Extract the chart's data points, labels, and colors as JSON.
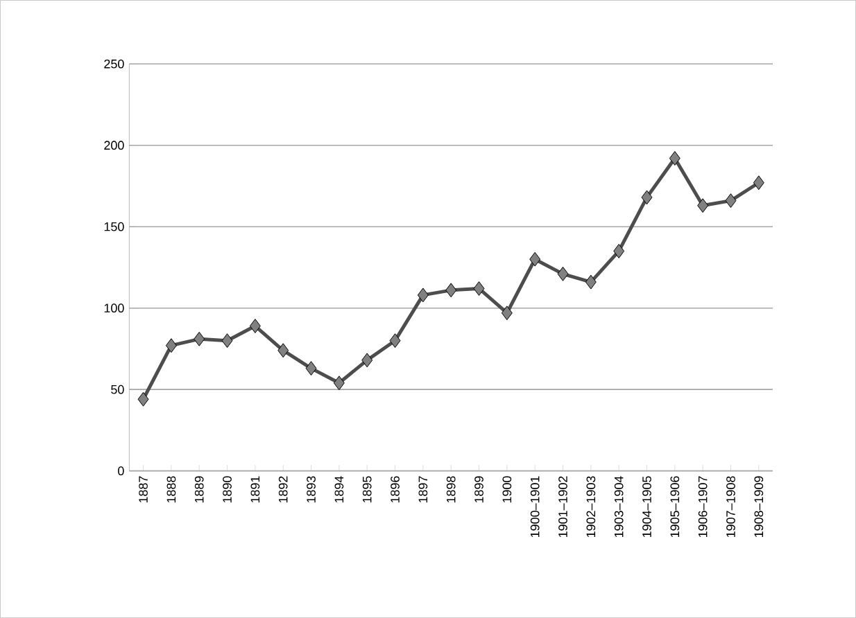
{
  "chart_data": {
    "type": "line",
    "categories": [
      "1887",
      "1888",
      "1889",
      "1890",
      "1891",
      "1892",
      "1893",
      "1894",
      "1895",
      "1896",
      "1897",
      "1898",
      "1899",
      "1900",
      "1900–1901",
      "1901–1902",
      "1902–1903",
      "1903–1904",
      "1904–1905",
      "1905–1906",
      "1906–1907",
      "1907–1908",
      "1908–1909"
    ],
    "series": [
      {
        "color": "#4d4d4d",
        "values": [
          44,
          77,
          81,
          80,
          89,
          74,
          63,
          54,
          68,
          80,
          108,
          111,
          112,
          97,
          130,
          121,
          116,
          135,
          168,
          192,
          163,
          166,
          177
        ]
      }
    ],
    "ylim": [
      0,
      250
    ],
    "yticks": [
      0,
      50,
      100,
      150,
      200,
      250
    ],
    "grid": "y",
    "marker": "diamond",
    "line_style": "solid"
  }
}
